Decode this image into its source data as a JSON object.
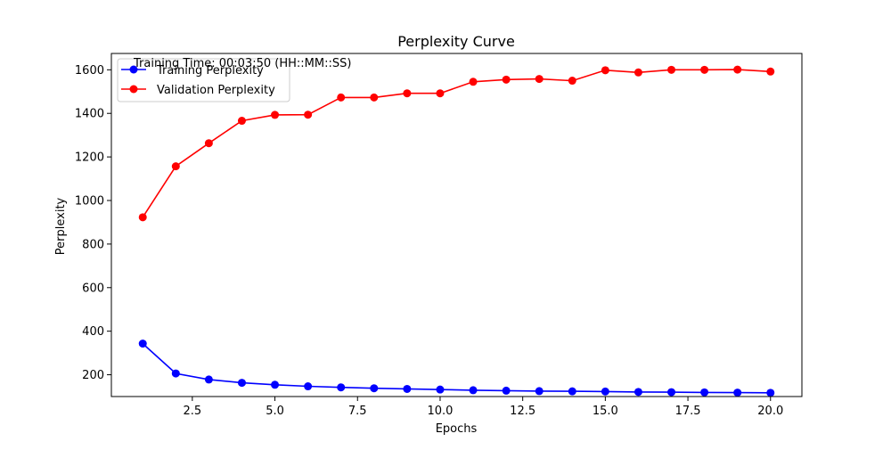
{
  "chart_data": {
    "type": "line",
    "title": "Perplexity Curve",
    "xlabel": "Epochs",
    "ylabel": "Perplexity",
    "xlim": [
      0.05,
      20.95
    ],
    "ylim": [
      100,
      1675
    ],
    "xticks": [
      2.5,
      5.0,
      7.5,
      10.0,
      12.5,
      15.0,
      17.5,
      20.0
    ],
    "xtick_labels": [
      "2.5",
      "5.0",
      "7.5",
      "10.0",
      "12.5",
      "15.0",
      "17.5",
      "20.0"
    ],
    "yticks": [
      200,
      400,
      600,
      800,
      1000,
      1200,
      1400,
      1600
    ],
    "ytick_labels": [
      "200",
      "400",
      "600",
      "800",
      "1000",
      "1200",
      "1400",
      "1600"
    ],
    "grid": false,
    "legend_position": "upper-left",
    "annotation": "Training Time: 00:03:50 (HH::MM::SS)",
    "x": [
      1,
      2,
      3,
      4,
      5,
      6,
      7,
      8,
      9,
      10,
      11,
      12,
      13,
      14,
      15,
      16,
      17,
      18,
      19,
      20
    ],
    "series": [
      {
        "name": "Training Perplexity",
        "color": "#0000ff",
        "marker": "circle",
        "values": [
          343,
          206,
          178,
          163,
          154,
          147,
          142,
          138,
          135,
          132,
          129,
          127,
          125,
          124,
          123,
          121,
          120,
          119,
          118,
          117
        ]
      },
      {
        "name": "Validation Perplexity",
        "color": "#ff0000",
        "marker": "circle",
        "values": [
          923,
          1157,
          1263,
          1366,
          1393,
          1394,
          1473,
          1473,
          1492,
          1492,
          1545,
          1555,
          1558,
          1550,
          1598,
          1588,
          1600,
          1600,
          1601,
          1592
        ]
      }
    ]
  }
}
